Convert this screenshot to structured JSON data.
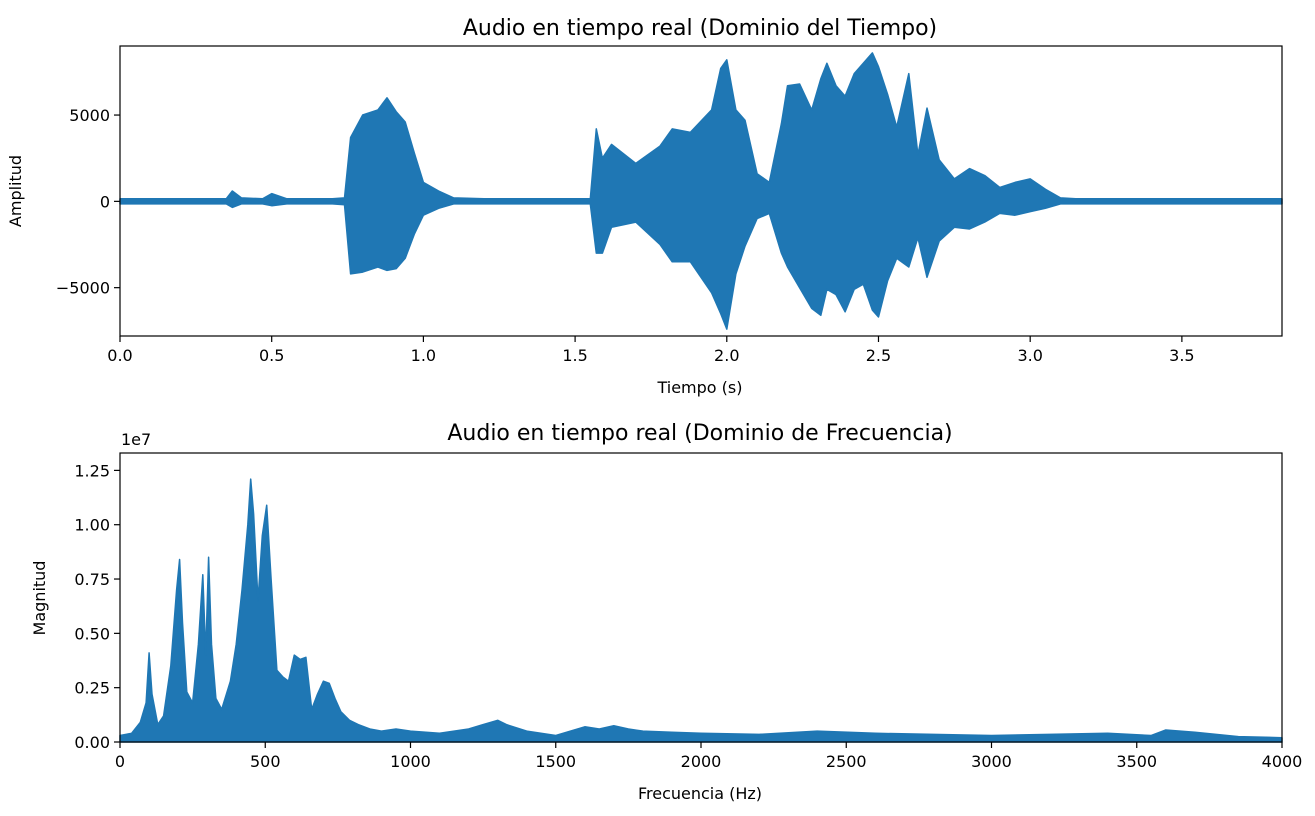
{
  "chart_data": [
    {
      "type": "line",
      "title": "Audio en tiempo real (Dominio del Tiempo)",
      "xlabel": "Tiempo (s)",
      "ylabel": "Amplitud",
      "xlim": [
        0.0,
        3.83
      ],
      "ylim": [
        -7800,
        9000
      ],
      "x_ticks": [
        0.0,
        0.5,
        1.0,
        1.5,
        2.0,
        2.5,
        3.0,
        3.5
      ],
      "x_tick_labels": [
        "0.0",
        "0.5",
        "1.0",
        "1.5",
        "2.0",
        "2.5",
        "3.0",
        "3.5"
      ],
      "y_ticks": [
        -5000,
        0,
        5000
      ],
      "y_tick_labels": [
        "−5000",
        "0",
        "5000"
      ],
      "grid": false,
      "color": "#1f77b4",
      "envelope": {
        "x": [
          0.0,
          0.35,
          0.37,
          0.4,
          0.47,
          0.5,
          0.55,
          0.7,
          0.74,
          0.76,
          0.8,
          0.85,
          0.88,
          0.91,
          0.94,
          0.97,
          1.0,
          1.05,
          1.1,
          1.2,
          1.4,
          1.55,
          1.57,
          1.59,
          1.62,
          1.7,
          1.78,
          1.82,
          1.88,
          1.95,
          1.98,
          2.0,
          2.03,
          2.06,
          2.1,
          2.14,
          2.18,
          2.2,
          2.24,
          2.28,
          2.31,
          2.33,
          2.36,
          2.39,
          2.42,
          2.45,
          2.48,
          2.5,
          2.53,
          2.56,
          2.6,
          2.63,
          2.66,
          2.7,
          2.75,
          2.8,
          2.85,
          2.9,
          2.95,
          3.0,
          3.05,
          3.1,
          3.15,
          3.3,
          3.6,
          3.8,
          3.83
        ],
        "max": [
          150,
          150,
          600,
          200,
          150,
          450,
          150,
          150,
          200,
          3700,
          5000,
          5300,
          6000,
          5200,
          4600,
          2800,
          1100,
          600,
          200,
          150,
          150,
          150,
          4200,
          2500,
          3300,
          2200,
          3200,
          4200,
          4000,
          5300,
          7700,
          8200,
          5300,
          4700,
          1600,
          1100,
          4500,
          6700,
          6800,
          5300,
          7100,
          8000,
          6700,
          6100,
          7400,
          8000,
          8600,
          7800,
          6200,
          4300,
          7400,
          2700,
          5400,
          2400,
          1300,
          1900,
          1500,
          800,
          1100,
          1300,
          700,
          200,
          150,
          150,
          150,
          150,
          150
        ],
        "min": [
          -150,
          -150,
          -350,
          -150,
          -150,
          -250,
          -150,
          -150,
          -200,
          -4200,
          -4100,
          -3800,
          -4000,
          -3900,
          -3300,
          -1900,
          -800,
          -400,
          -150,
          -150,
          -150,
          -150,
          -3000,
          -3000,
          -1500,
          -1200,
          -2500,
          -3500,
          -3500,
          -5300,
          -6500,
          -7400,
          -4200,
          -2600,
          -1000,
          -700,
          -3000,
          -3800,
          -5000,
          -6200,
          -6600,
          -5100,
          -5400,
          -6400,
          -5100,
          -4800,
          -6300,
          -6700,
          -4600,
          -3300,
          -3800,
          -2100,
          -4400,
          -2300,
          -1500,
          -1600,
          -1200,
          -700,
          -800,
          -600,
          -400,
          -150,
          -150,
          -150,
          -150,
          -150,
          -150
        ]
      }
    },
    {
      "type": "line",
      "title": "Audio en tiempo real (Dominio de Frecuencia)",
      "xlabel": "Frecuencia (Hz)",
      "ylabel": "Magnitud",
      "scale_label": "1e7",
      "xlim": [
        0,
        4000
      ],
      "ylim": [
        0,
        13300000.0
      ],
      "x_ticks": [
        0,
        500,
        1000,
        1500,
        2000,
        2500,
        3000,
        3500,
        4000
      ],
      "x_tick_labels": [
        "0",
        "500",
        "1000",
        "1500",
        "2000",
        "2500",
        "3000",
        "3500",
        "4000"
      ],
      "y_ticks": [
        0,
        2500000,
        5000000,
        7500000,
        10000000,
        12500000
      ],
      "y_tick_labels": [
        "0.00",
        "0.25",
        "0.50",
        "0.75",
        "1.00",
        "1.25"
      ],
      "grid": false,
      "color": "#1f77b4",
      "envelope": {
        "x": [
          0,
          40,
          70,
          90,
          100,
          110,
          130,
          150,
          175,
          195,
          205,
          215,
          230,
          250,
          270,
          285,
          295,
          305,
          315,
          330,
          350,
          380,
          400,
          420,
          440,
          450,
          460,
          475,
          490,
          505,
          520,
          540,
          560,
          580,
          600,
          620,
          640,
          660,
          680,
          700,
          720,
          740,
          760,
          790,
          820,
          860,
          900,
          950,
          1000,
          1100,
          1200,
          1250,
          1300,
          1330,
          1400,
          1500,
          1600,
          1650,
          1700,
          1750,
          1800,
          1900,
          2000,
          2200,
          2400,
          2600,
          2800,
          3000,
          3200,
          3400,
          3550,
          3600,
          3700,
          3850,
          4000
        ],
        "max": [
          300000,
          400000,
          900000,
          1800000,
          4100000,
          2200000,
          800000,
          1200000,
          3500000,
          7000000,
          8400000,
          5500000,
          2300000,
          1800000,
          4500000,
          7700000,
          4000000,
          8500000,
          4500000,
          2000000,
          1500000,
          2800000,
          4500000,
          7000000,
          10000000,
          12100000,
          10500000,
          6500000,
          9500000,
          10900000,
          7500000,
          3300000,
          3000000,
          2800000,
          4000000,
          3800000,
          3900000,
          1500000,
          2200000,
          2800000,
          2700000,
          2000000,
          1400000,
          1000000,
          800000,
          600000,
          500000,
          600000,
          500000,
          400000,
          600000,
          800000,
          1000000,
          800000,
          500000,
          300000,
          700000,
          600000,
          750000,
          600000,
          500000,
          450000,
          400000,
          350000,
          500000,
          400000,
          350000,
          300000,
          350000,
          400000,
          300000,
          550000,
          450000,
          250000,
          200000
        ],
        "min": [
          0,
          0,
          0,
          0,
          0,
          0,
          0,
          0,
          0,
          0,
          0,
          0,
          0,
          0,
          0,
          0,
          0,
          0,
          0,
          0,
          0,
          0,
          0,
          0,
          0,
          0,
          0,
          0,
          0,
          0,
          0,
          0,
          0,
          0,
          0,
          0,
          0,
          0,
          0,
          0,
          0,
          0,
          0,
          0,
          0,
          0,
          0,
          0,
          0,
          0,
          0,
          0,
          0,
          0,
          0,
          0,
          0,
          0,
          0,
          0,
          0,
          0,
          0,
          0,
          0,
          0,
          0,
          0,
          0,
          0,
          0,
          0,
          0,
          0,
          0
        ]
      }
    }
  ]
}
